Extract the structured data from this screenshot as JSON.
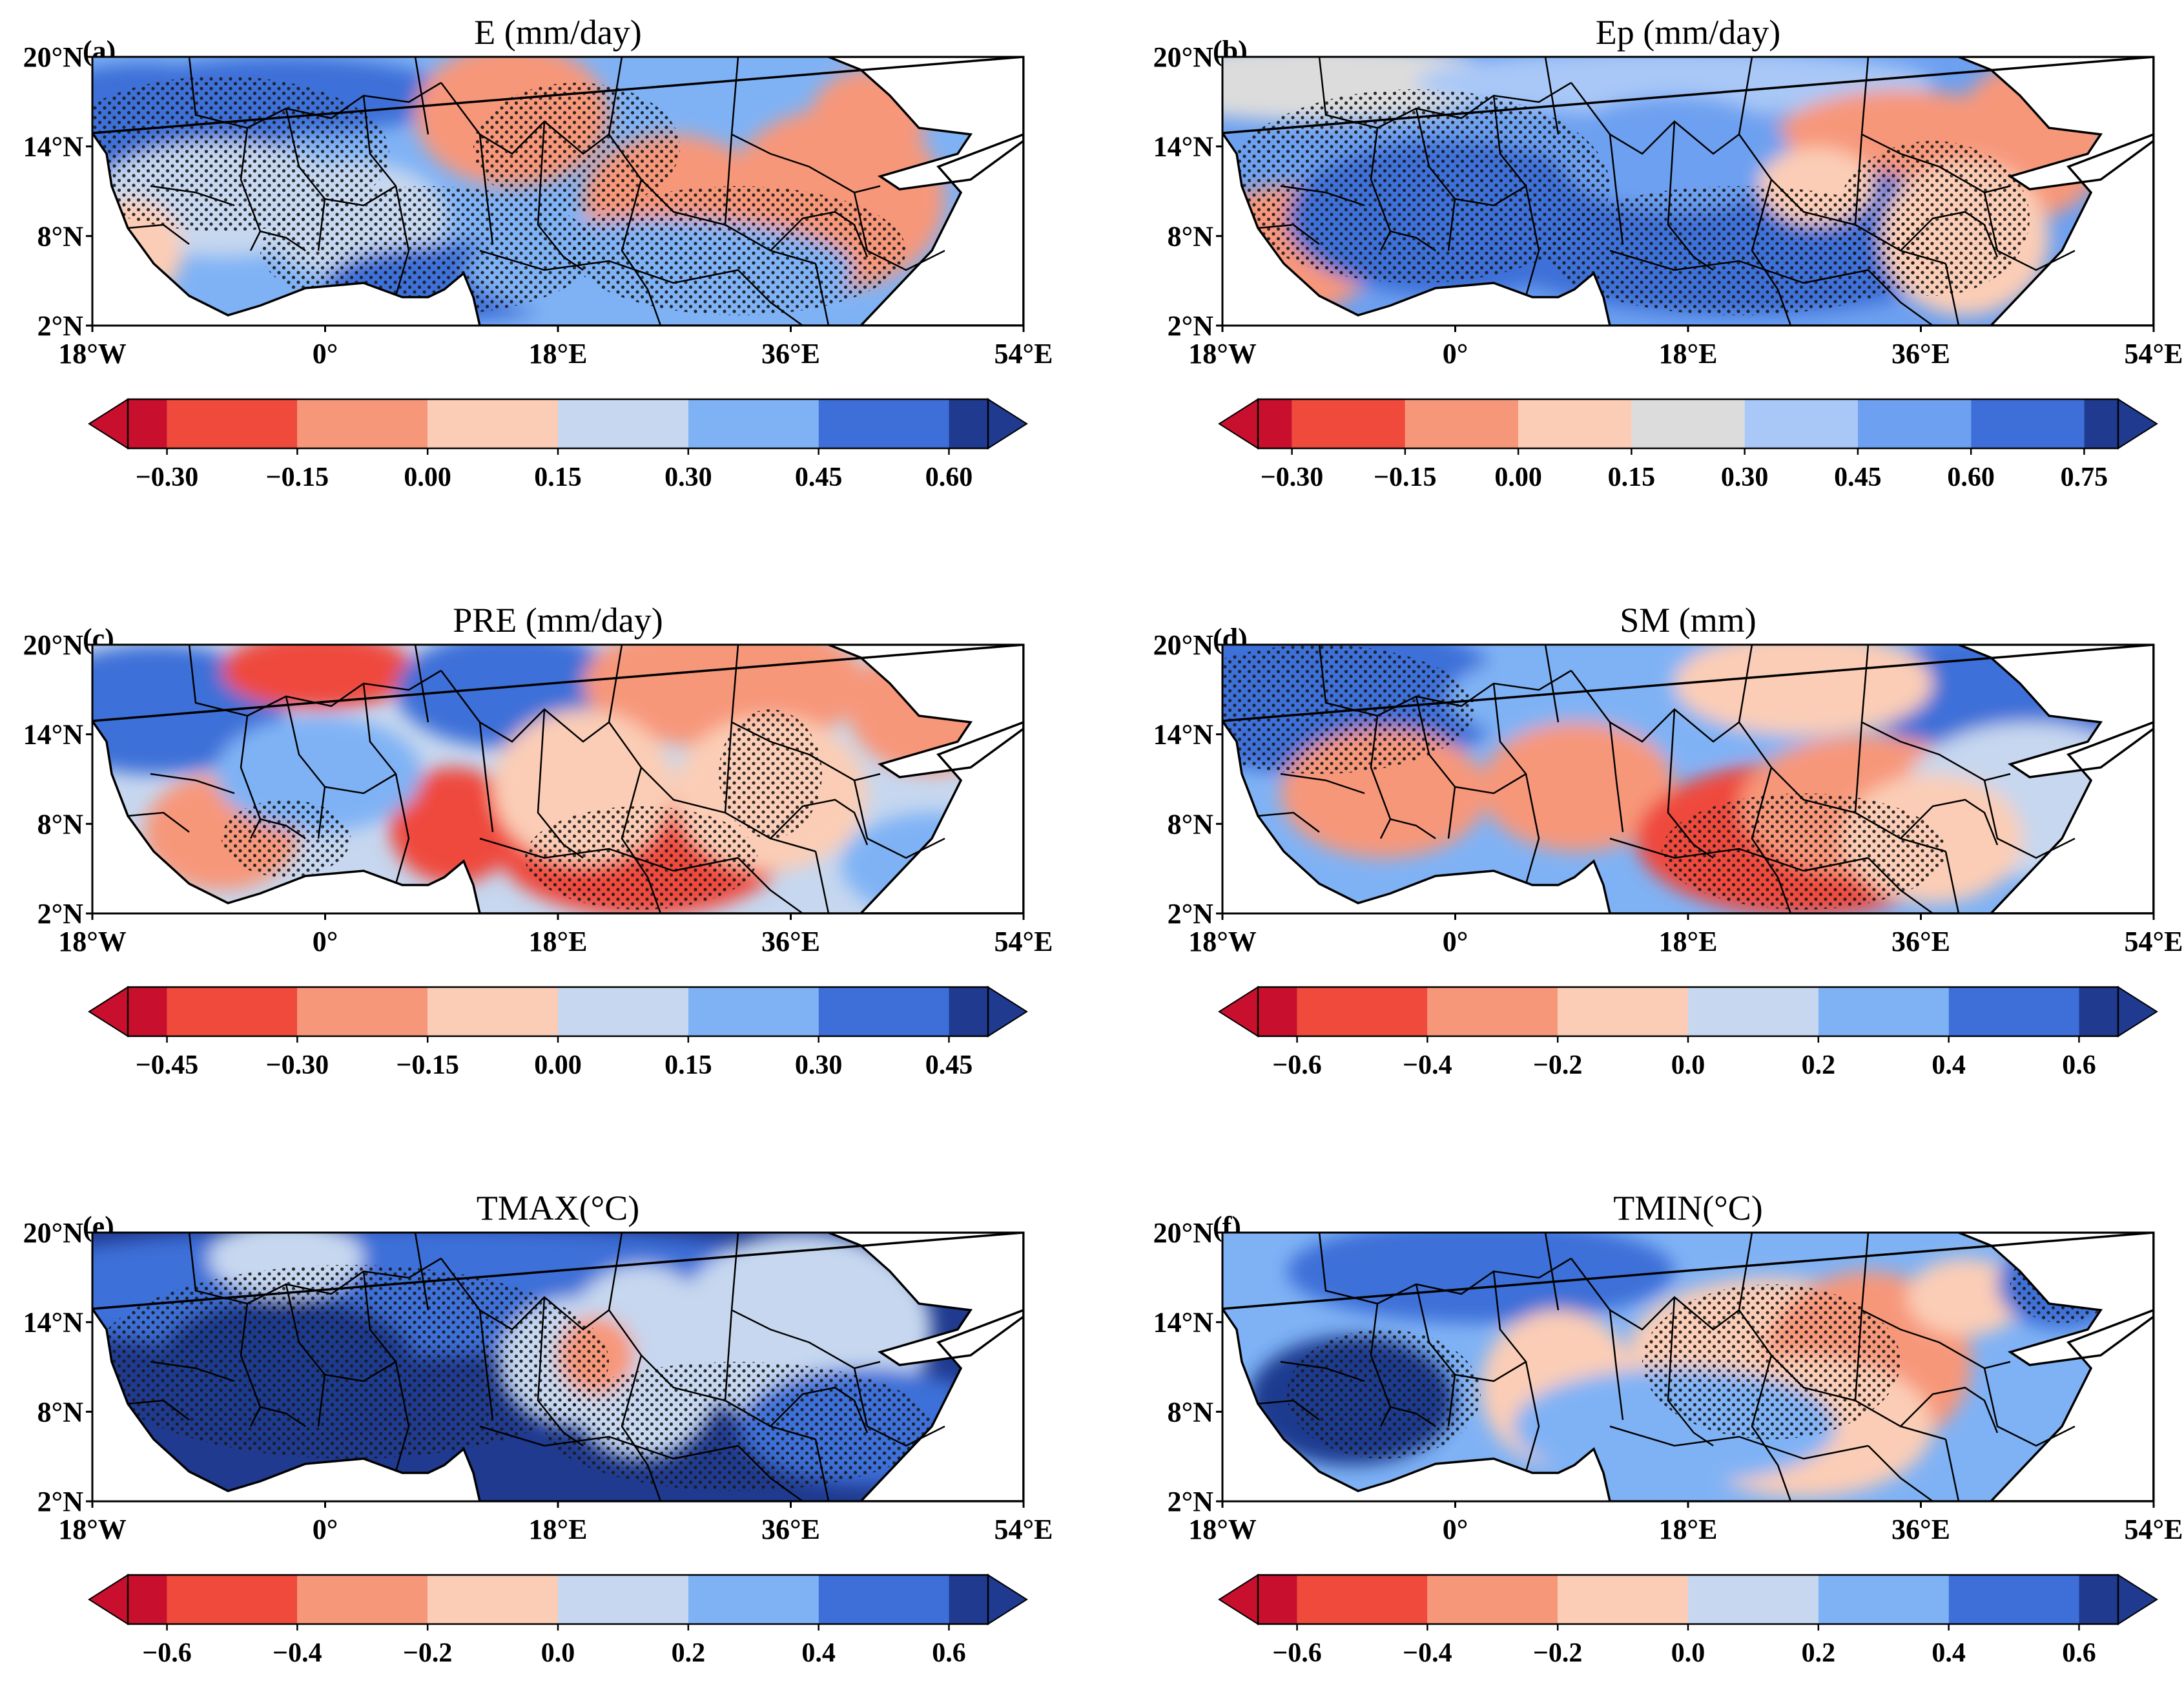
{
  "figure": {
    "lat_ticks": [
      "20°N",
      "14°N",
      "8°N",
      "2°N"
    ],
    "lon_ticks": [
      "18°W",
      "0°",
      "18°E",
      "36°E",
      "54°E"
    ],
    "stipple_color": "#1a1a1a",
    "land_outline_color": "#000000",
    "sea_color": "#ffffff"
  },
  "chart_data": [
    {
      "type": "heatmap",
      "panel": "(a)",
      "title": "E (mm/day)",
      "cbar_ticks": [
        "−0.30",
        "−0.15",
        "0.00",
        "0.15",
        "0.30",
        "0.45",
        "0.60"
      ],
      "cbar_colors": [
        "#c8102e",
        "#ef4a3c",
        "#f7977a",
        "#fbcdb6",
        "#c6d7ef",
        "#7fb2f5",
        "#3e6fd8",
        "#1f3a8f"
      ],
      "map_style": "e"
    },
    {
      "type": "heatmap",
      "panel": "(b)",
      "title": "Ep (mm/day)",
      "cbar_ticks": [
        "−0.30",
        "−0.15",
        "0.00",
        "0.15",
        "0.30",
        "0.45",
        "0.60",
        "0.75"
      ],
      "cbar_colors": [
        "#c8102e",
        "#ef4a3c",
        "#f7977a",
        "#fbcdb6",
        "#dcdcdc",
        "#a9c8f7",
        "#6da0f0",
        "#3e6fd8",
        "#1f3a8f"
      ],
      "map_style": "ep"
    },
    {
      "type": "heatmap",
      "panel": "(c)",
      "title": "PRE (mm/day)",
      "cbar_ticks": [
        "−0.45",
        "−0.30",
        "−0.15",
        "0.00",
        "0.15",
        "0.30",
        "0.45"
      ],
      "cbar_colors": [
        "#c8102e",
        "#ef4a3c",
        "#f7977a",
        "#fbcdb6",
        "#c6d7ef",
        "#7fb2f5",
        "#3e6fd8",
        "#1f3a8f"
      ],
      "map_style": "pre"
    },
    {
      "type": "heatmap",
      "panel": "(d)",
      "title": "SM (mm)",
      "cbar_ticks": [
        "−0.6",
        "−0.4",
        "−0.2",
        "0.0",
        "0.2",
        "0.4",
        "0.6"
      ],
      "cbar_colors": [
        "#c8102e",
        "#ef4a3c",
        "#f7977a",
        "#fbcdb6",
        "#c6d7ef",
        "#7fb2f5",
        "#3e6fd8",
        "#1f3a8f"
      ],
      "map_style": "sm"
    },
    {
      "type": "heatmap",
      "panel": "(e)",
      "title": "TMAX(°C)",
      "cbar_ticks": [
        "−0.6",
        "−0.4",
        "−0.2",
        "0.0",
        "0.2",
        "0.4",
        "0.6"
      ],
      "cbar_colors": [
        "#c8102e",
        "#ef4a3c",
        "#f7977a",
        "#fbcdb6",
        "#c6d7ef",
        "#7fb2f5",
        "#3e6fd8",
        "#1f3a8f"
      ],
      "map_style": "tmax"
    },
    {
      "type": "heatmap",
      "panel": "(f)",
      "title": "TMIN(°C)",
      "cbar_ticks": [
        "−0.6",
        "−0.4",
        "−0.2",
        "0.0",
        "0.2",
        "0.4",
        "0.6"
      ],
      "cbar_colors": [
        "#c8102e",
        "#ef4a3c",
        "#f7977a",
        "#fbcdb6",
        "#c6d7ef",
        "#7fb2f5",
        "#3e6fd8",
        "#1f3a8f"
      ],
      "map_style": "tmin"
    }
  ]
}
